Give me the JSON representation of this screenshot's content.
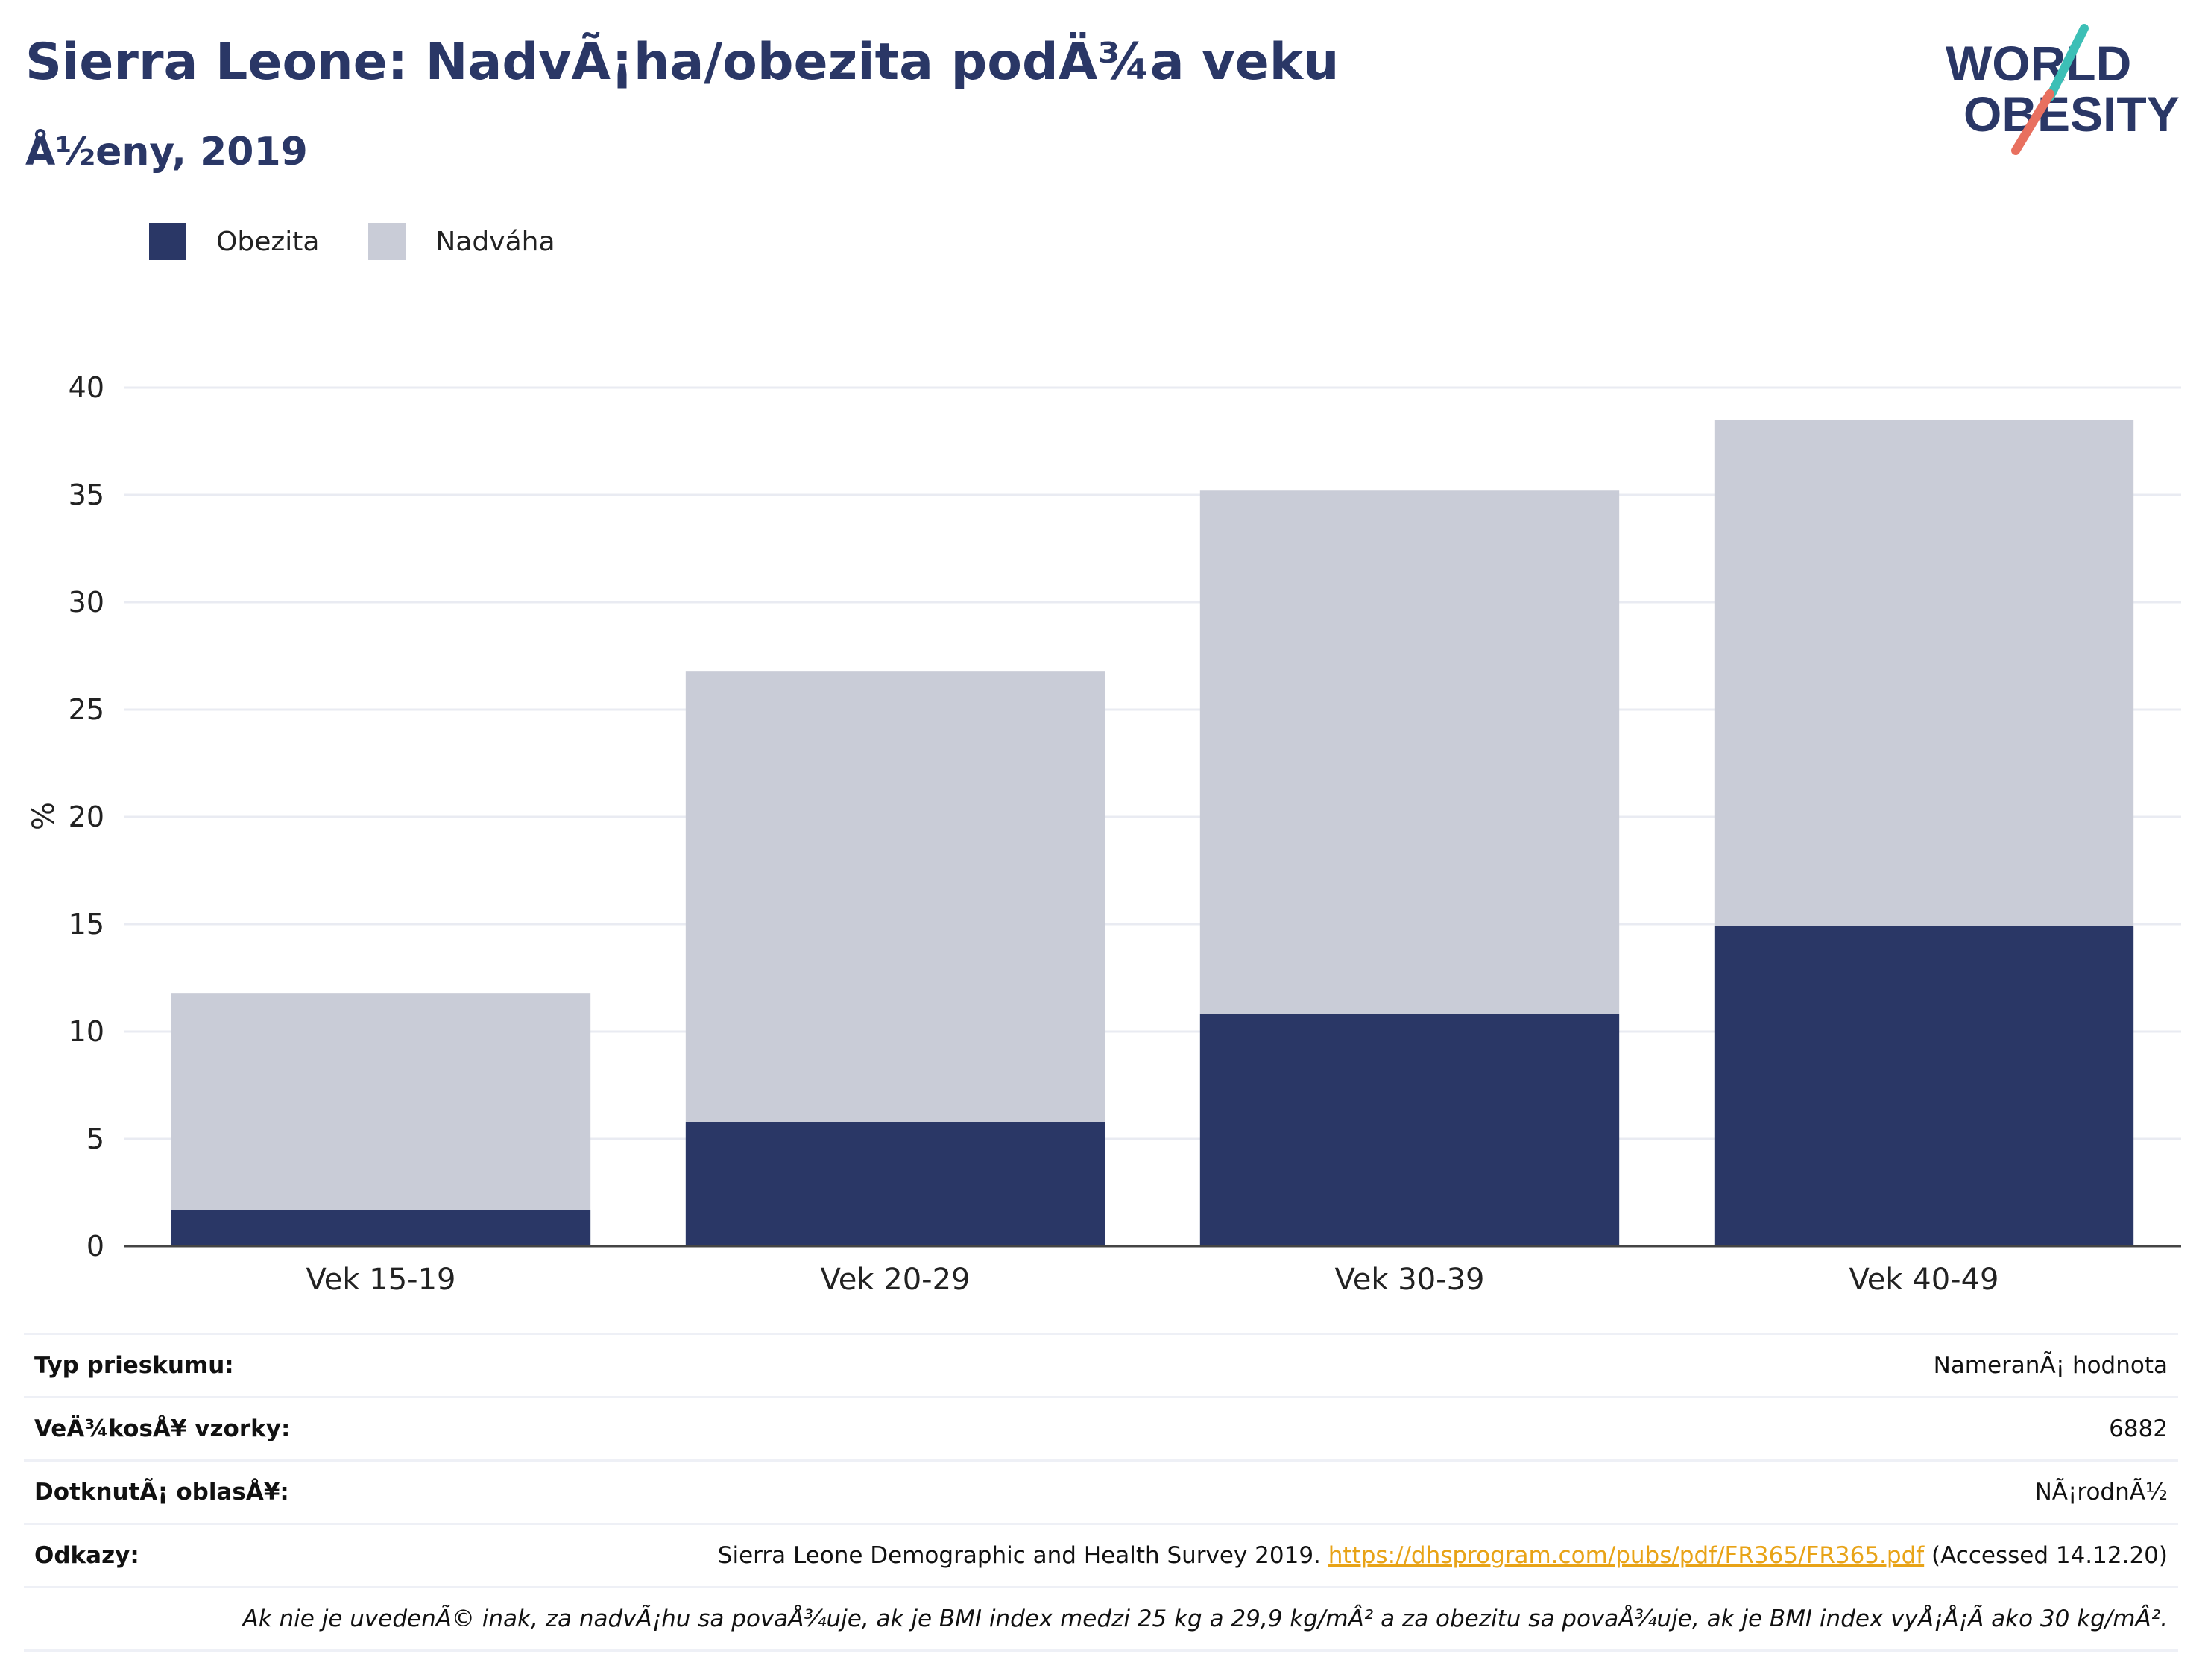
{
  "header": {
    "title": "Sierra Leone: NadvÃ¡ha/obezita podÄ¾a veku",
    "subtitle": "Å½eny, 2019",
    "logo_line1": "WORLD",
    "logo_line2": "OBESITY"
  },
  "legend": [
    {
      "name": "Obezita",
      "color": "#2a3766"
    },
    {
      "name": "Nadváha",
      "color": "#c9ccd7"
    }
  ],
  "chart_data": {
    "type": "bar",
    "stacked": true,
    "categories": [
      "Vek 15-19",
      "Vek 20-29",
      "Vek 30-39",
      "Vek 40-49"
    ],
    "series": [
      {
        "name": "Obezita",
        "values": [
          1.7,
          5.8,
          10.8,
          14.9
        ],
        "color": "#2a3766"
      },
      {
        "name": "Nadváha",
        "values": [
          10.1,
          21.0,
          24.4,
          23.6
        ],
        "color": "#c9ccd7"
      }
    ],
    "ylabel": "%",
    "ylim": [
      0,
      40
    ],
    "yticks": [
      0,
      5,
      10,
      15,
      20,
      25,
      30,
      35,
      40
    ],
    "grid": true,
    "legend_position": "top-left"
  },
  "info": {
    "survey_type": {
      "label": "Typ prieskumu:",
      "value": "NameranÃ¡ hodnota"
    },
    "sample_size": {
      "label": "VeÄ¾kosÅ¥ vzorky:",
      "value": "6882"
    },
    "area": {
      "label": "DotknutÃ¡ oblasÅ¥:",
      "value": "NÃ¡rodnÃ½"
    },
    "references": {
      "label": "Odkazy:",
      "text_before": "Sierra Leone Demographic and Health Survey 2019.",
      "link": "https://dhsprogram.com/pubs/pdf/FR365/FR365.pdf",
      "text_after": "(Accessed 14.12.20)"
    },
    "note": "Ak nie je uvedenÃ© inak, za nadvÃ¡hu sa povaÅ¾uje, ak je BMI index medzi 25 kg a 29,9 kg/mÂ² a za obezitu sa povaÅ¾uje, ak je BMI index vyÅ¡Å¡Ã ako 30 kg/mÂ²."
  }
}
